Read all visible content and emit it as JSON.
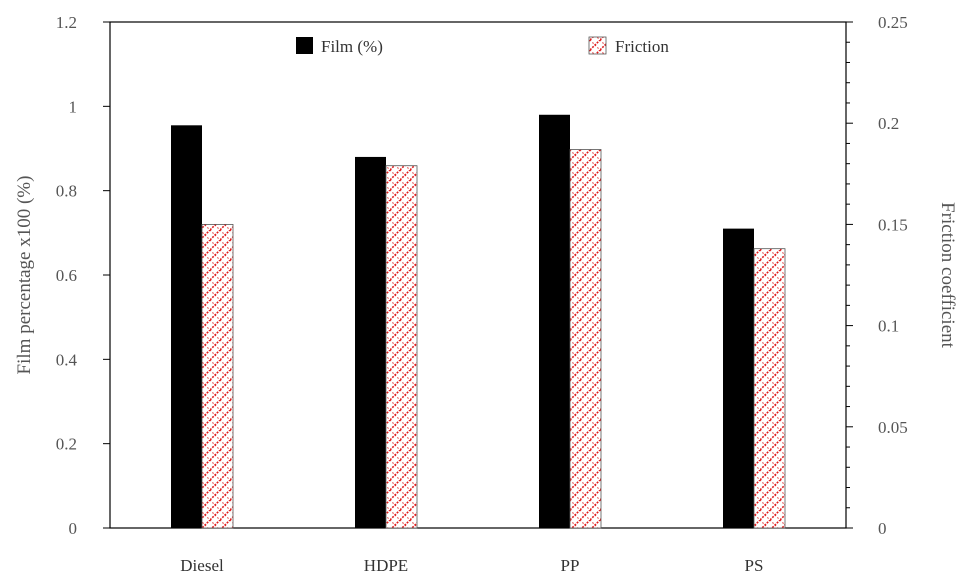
{
  "chart_data": {
    "type": "bar",
    "categories": [
      "Diesel",
      "HDPE",
      "PP",
      "PS"
    ],
    "series": [
      {
        "name": "Film (%)",
        "axis": "left",
        "values": [
          0.955,
          0.88,
          0.98,
          0.71
        ],
        "color": "#000000",
        "fill": "solid"
      },
      {
        "name": "Friction",
        "axis": "right",
        "values": [
          0.15,
          0.179,
          0.187,
          0.138
        ],
        "color": "#e02020",
        "fill": "hatched-red"
      }
    ],
    "ylabel": "Film percentage x100 (%)",
    "ylabel_right": "Friction coefficient",
    "xlabel": "",
    "ylim": [
      0,
      1.2
    ],
    "ylim_right": [
      0,
      0.25
    ],
    "yticks": [
      "0",
      "0.2",
      "0.4",
      "0.6",
      "0.8",
      "1",
      "1.2"
    ],
    "yticks_right": [
      "0",
      "0.05",
      "0.1",
      "0.15",
      "0.2",
      "0.25"
    ],
    "grid": false,
    "legend": "top"
  }
}
